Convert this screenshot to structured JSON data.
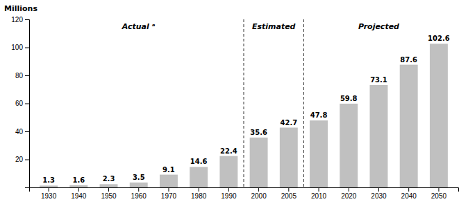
{
  "chart_data": {
    "type": "bar",
    "ylabel": "Millions",
    "categories": [
      "1930",
      "1940",
      "1950",
      "1960",
      "1970",
      "1980",
      "1990",
      "2000",
      "2005",
      "2010",
      "2020",
      "2030",
      "2040",
      "2050"
    ],
    "values": [
      1.3,
      1.6,
      2.3,
      3.5,
      9.1,
      14.6,
      22.4,
      35.6,
      42.7,
      47.8,
      59.8,
      73.1,
      87.6,
      102.6
    ],
    "color": "#c0c0c0",
    "ylim": [
      0,
      120
    ],
    "yticks": [
      20,
      40,
      60,
      80,
      100,
      120
    ],
    "grid": false,
    "data_labels": true,
    "annotations": [
      {
        "text": "Actual ᵃ",
        "x": [
          "1930",
          "1990"
        ]
      },
      {
        "text": "Estimated",
        "x": [
          "2000",
          "2005"
        ]
      },
      {
        "text": "Projected",
        "x": [
          "2010",
          "2050"
        ]
      }
    ]
  }
}
